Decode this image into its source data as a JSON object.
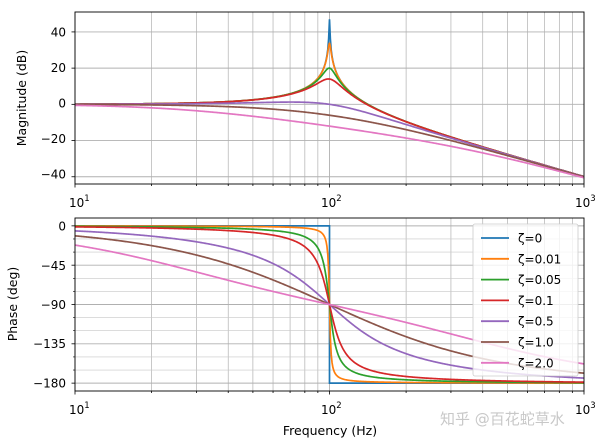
{
  "chart_data": [
    {
      "type": "line",
      "title": "",
      "xlabel": "",
      "ylabel": "Magnitude (dB)",
      "xscale": "log",
      "xlim": [
        10,
        1000
      ],
      "ylim": [
        -44,
        51
      ],
      "xticks": [
        "10^1",
        "10^2",
        "10^3"
      ],
      "yticks": [
        40,
        20,
        0,
        -20,
        -40
      ],
      "grid": true,
      "natural_frequency_hz": 100,
      "series": [
        {
          "name": "ζ=0",
          "zeta": 0,
          "color": "#1f77b4",
          "peak_db": 47
        },
        {
          "name": "ζ=0.01",
          "zeta": 0.01,
          "color": "#ff7f0e",
          "peak_db": 34
        },
        {
          "name": "ζ=0.05",
          "zeta": 0.05,
          "color": "#2ca02c",
          "peak_db": 20
        },
        {
          "name": "ζ=0.1",
          "zeta": 0.1,
          "color": "#d62728",
          "peak_db": 14
        },
        {
          "name": "ζ=0.5",
          "zeta": 0.5,
          "color": "#9467bd",
          "peak_db": 1.2
        },
        {
          "name": "ζ=1.0",
          "zeta": 1.0,
          "color": "#8c564b",
          "peak_db": 0
        },
        {
          "name": "ζ=2.0",
          "zeta": 2.0,
          "color": "#e377c2",
          "peak_db": 0
        }
      ],
      "sample_points": {
        "x": [
          10,
          50,
          100,
          200,
          1000
        ],
        "zeta_0.1": [
          0.1,
          2.4,
          14.0,
          -9.4,
          -40.0
        ],
        "zeta_1.0": [
          -0.1,
          -1.9,
          -6.0,
          -14.0,
          -40.0
        ],
        "zeta_2.0": [
          -0.4,
          -6.5,
          -12.0,
          -18.5,
          -40.2
        ]
      }
    },
    {
      "type": "line",
      "title": "",
      "xlabel": "Frequency (Hz)",
      "ylabel": "Phase (deg)",
      "xscale": "log",
      "xlim": [
        10,
        1000
      ],
      "ylim": [
        -189,
        9
      ],
      "xticks": [
        "10^1",
        "10^2",
        "10^3"
      ],
      "yticks": [
        0,
        -45,
        -90,
        -135,
        -180
      ],
      "grid": true,
      "legend_position": "upper right",
      "series": [
        {
          "name": "ζ=0",
          "zeta": 0,
          "color": "#1f77b4"
        },
        {
          "name": "ζ=0.01",
          "zeta": 0.01,
          "color": "#ff7f0e"
        },
        {
          "name": "ζ=0.05",
          "zeta": 0.05,
          "color": "#2ca02c"
        },
        {
          "name": "ζ=0.1",
          "zeta": 0.1,
          "color": "#d62728"
        },
        {
          "name": "ζ=0.5",
          "zeta": 0.5,
          "color": "#9467bd"
        },
        {
          "name": "ζ=1.0",
          "zeta": 1.0,
          "color": "#8c564b"
        },
        {
          "name": "ζ=2.0",
          "zeta": 2.0,
          "color": "#e377c2"
        }
      ],
      "sample_points": {
        "x": [
          10,
          100,
          1000
        ],
        "all_series_at_100Hz": -90,
        "zeta_2.0": [
          -22.0,
          -90,
          -158.0
        ],
        "zeta_0.5": [
          -5.8,
          -90,
          -174.2
        ]
      }
    }
  ],
  "axes": {
    "top": {
      "ylabel": "Magnitude (dB)",
      "yticks": [
        "40",
        "20",
        "0",
        "−20",
        "−40"
      ],
      "xtick_base": [
        "10",
        "10",
        "10"
      ],
      "xtick_exp": [
        "1",
        "2",
        "3"
      ]
    },
    "bottom": {
      "ylabel": "Phase (deg)",
      "xlabel": "Frequency (Hz)",
      "yticks": [
        "0",
        "−45",
        "−90",
        "−135",
        "−180"
      ],
      "xtick_base": [
        "10",
        "10",
        "10"
      ],
      "xtick_exp": [
        "1",
        "2",
        "3"
      ]
    }
  },
  "legend": {
    "items": [
      {
        "label": "ζ=0",
        "color": "#1f77b4"
      },
      {
        "label": "ζ=0.01",
        "color": "#ff7f0e"
      },
      {
        "label": "ζ=0.05",
        "color": "#2ca02c"
      },
      {
        "label": "ζ=0.1",
        "color": "#d62728"
      },
      {
        "label": "ζ=0.5",
        "color": "#9467bd"
      },
      {
        "label": "ζ=1.0",
        "color": "#8c564b"
      },
      {
        "label": "ζ=2.0",
        "color": "#e377c2"
      }
    ]
  },
  "watermark": "知乎 @百花蛇草水"
}
